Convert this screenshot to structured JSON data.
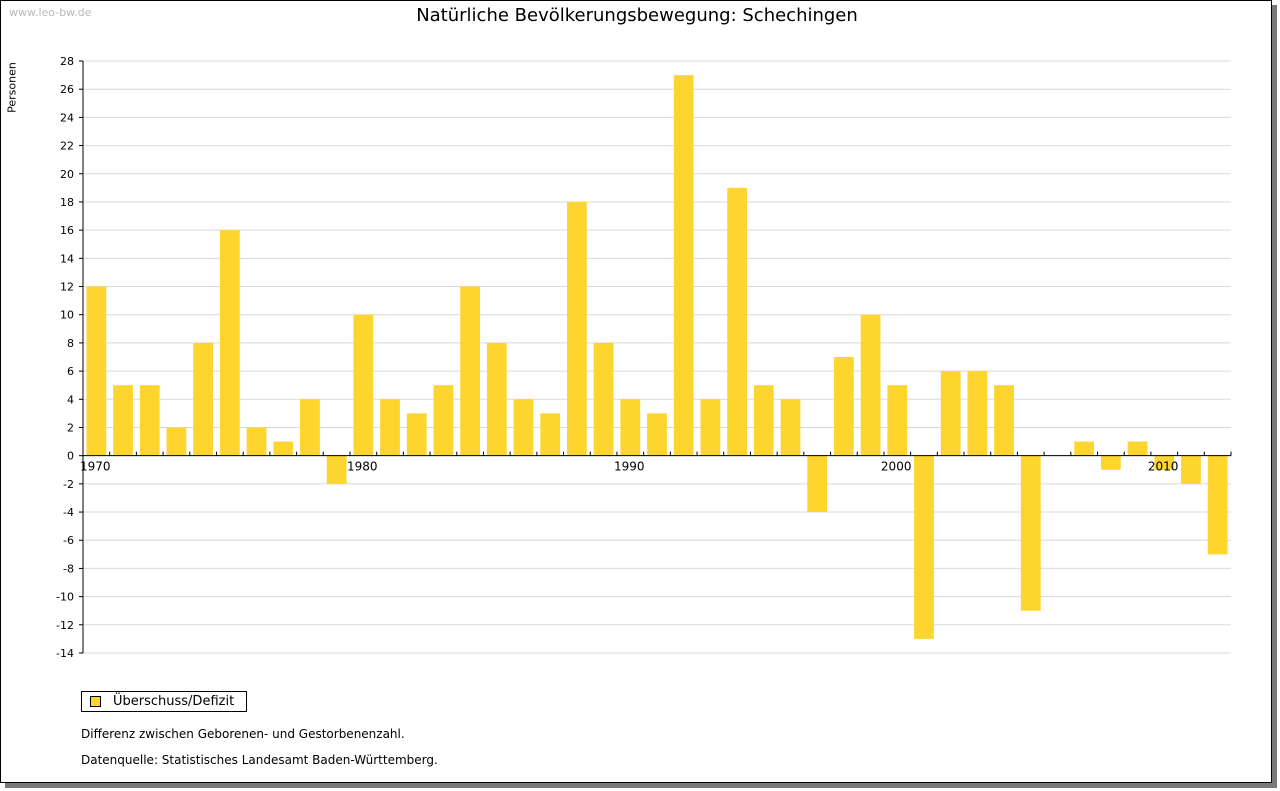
{
  "watermark": "www.leo-bw.de",
  "colors": {
    "bar": "#fdd52e",
    "grid": "#d9d9d9",
    "axis": "#000000"
  },
  "chart_data": {
    "type": "bar",
    "title": "Natürliche Bevölkerungsbewegung: Schechingen",
    "ylabel": "Personen",
    "xlabel": "",
    "ylim": [
      -14,
      28
    ],
    "ytick_step": 2,
    "grid": true,
    "x_tick_labels": [
      "1970",
      "1980",
      "1990",
      "2000",
      "2010"
    ],
    "categories": [
      1970,
      1971,
      1972,
      1973,
      1974,
      1975,
      1976,
      1977,
      1978,
      1979,
      1980,
      1981,
      1982,
      1983,
      1984,
      1985,
      1986,
      1987,
      1988,
      1989,
      1990,
      1991,
      1992,
      1993,
      1994,
      1995,
      1996,
      1997,
      1998,
      1999,
      2000,
      2001,
      2002,
      2003,
      2004,
      2005,
      2006,
      2007,
      2008,
      2009,
      2010,
      2011,
      2012
    ],
    "series": [
      {
        "name": "Überschuss/Defizit",
        "values": [
          12,
          5,
          5,
          2,
          8,
          16,
          2,
          1,
          4,
          -2,
          10,
          4,
          3,
          5,
          12,
          8,
          4,
          3,
          18,
          8,
          4,
          3,
          27,
          4,
          19,
          5,
          4,
          -4,
          7,
          10,
          5,
          -13,
          6,
          6,
          5,
          -11,
          0,
          1,
          -1,
          1,
          -1,
          -2,
          -7
        ]
      }
    ],
    "legend_position": "bottom-left"
  },
  "notes": {
    "description": "Differenz zwischen Geborenen- und Gestorbenenzahl.",
    "source": "Datenquelle: Statistisches Landesamt Baden-Württemberg."
  }
}
